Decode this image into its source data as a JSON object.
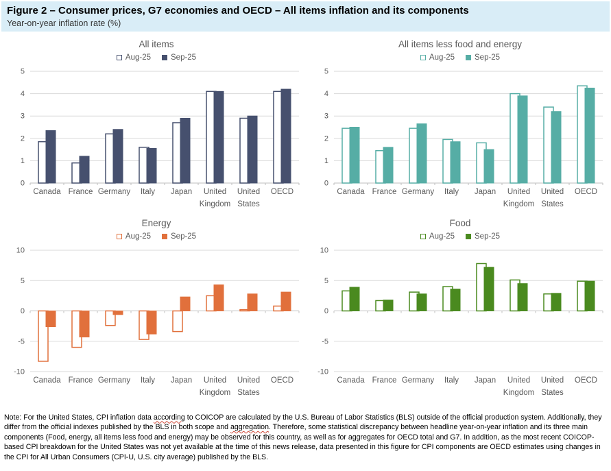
{
  "header": {
    "title": "Figure 2 – Consumer prices, G7 economies and OECD – All items inflation and its components",
    "subtitle": "Year-on-year inflation rate (%)"
  },
  "palette": {
    "header_bg": "#D9EDF7",
    "gridline": "#D9D9D9",
    "axis_line": "#BFBFBF",
    "label_gray": "#595959"
  },
  "chart_data": [
    {
      "id": "all-items",
      "type": "bar",
      "title": "All items",
      "color": "#46506E",
      "categories": [
        "Canada",
        "France",
        "Germany",
        "Italy",
        "Japan",
        "United Kingdom",
        "United States",
        "OECD"
      ],
      "series": [
        {
          "name": "Aug-25",
          "style": "outline",
          "values": [
            1.85,
            0.9,
            2.2,
            1.6,
            2.7,
            4.1,
            2.9,
            4.1
          ]
        },
        {
          "name": "Sep-25",
          "style": "filled",
          "values": [
            2.35,
            1.2,
            2.4,
            1.55,
            2.9,
            4.1,
            3.0,
            4.2
          ]
        }
      ],
      "ylim": [
        0,
        5
      ],
      "yticks": [
        0,
        1,
        2,
        3,
        4,
        5
      ],
      "grid": true,
      "legend_position": "top"
    },
    {
      "id": "all-items-less-food-energy",
      "type": "bar",
      "title": "All items less food and energy",
      "color": "#56ADA5",
      "categories": [
        "Canada",
        "France",
        "Germany",
        "Italy",
        "Japan",
        "United Kingdom",
        "United States",
        "OECD"
      ],
      "series": [
        {
          "name": "Aug-25",
          "style": "outline",
          "values": [
            2.45,
            1.45,
            2.45,
            1.95,
            1.8,
            4.0,
            3.4,
            4.35
          ]
        },
        {
          "name": "Sep-25",
          "style": "filled",
          "values": [
            2.5,
            1.6,
            2.65,
            1.85,
            1.5,
            3.9,
            3.2,
            4.25
          ]
        }
      ],
      "ylim": [
        0,
        5
      ],
      "yticks": [
        0,
        1,
        2,
        3,
        4,
        5
      ],
      "grid": true,
      "legend_position": "top"
    },
    {
      "id": "energy",
      "type": "bar",
      "title": "Energy",
      "color": "#E1703C",
      "categories": [
        "Canada",
        "France",
        "Germany",
        "Italy",
        "Japan",
        "United Kingdom",
        "United States",
        "OECD"
      ],
      "series": [
        {
          "name": "Aug-25",
          "style": "outline",
          "values": [
            -8.3,
            -6.0,
            -2.4,
            -4.7,
            -3.4,
            2.5,
            0.2,
            0.8
          ]
        },
        {
          "name": "Sep-25",
          "style": "filled",
          "values": [
            -2.6,
            -4.3,
            -0.6,
            -3.8,
            2.3,
            4.3,
            2.8,
            3.1
          ]
        }
      ],
      "ylim": [
        -10,
        10
      ],
      "yticks": [
        -10,
        -5,
        0,
        5,
        10
      ],
      "grid": true,
      "legend_position": "top"
    },
    {
      "id": "food",
      "type": "bar",
      "title": "Food",
      "color": "#4A8A1F",
      "categories": [
        "Canada",
        "France",
        "Germany",
        "Italy",
        "Japan",
        "United Kingdom",
        "United States",
        "OECD"
      ],
      "series": [
        {
          "name": "Aug-25",
          "style": "outline",
          "values": [
            3.3,
            1.7,
            3.1,
            4.0,
            7.8,
            5.1,
            2.8,
            4.9
          ]
        },
        {
          "name": "Sep-25",
          "style": "filled",
          "values": [
            3.9,
            1.8,
            2.8,
            3.6,
            7.2,
            4.5,
            2.9,
            4.9
          ]
        }
      ],
      "ylim": [
        -10,
        10
      ],
      "yticks": [
        -10,
        -5,
        0,
        5,
        10
      ],
      "grid": true,
      "legend_position": "top"
    }
  ],
  "note": {
    "parts": [
      {
        "text": "Note: For the United States, CPI inflation data ",
        "squiggle": false
      },
      {
        "text": "according",
        "squiggle": true
      },
      {
        "text": " to COICOP are calculated by the U.S. Bureau of Labor Statistics (BLS) outside of the official production system. Additionally, they differ from the official indexes published by the BLS in both scope and ",
        "squiggle": false
      },
      {
        "text": "aggregation",
        "squiggle": true
      },
      {
        "text": ". Therefore, some statistical discrepancy between headline year-on-year inflation and its three main components (Food, energy, all items less food and energy) may be observed for this country, as well as for aggregates for OECD total and G7. In addition, as the most recent COICOP-based CPI breakdown for the United States was not yet available at the time of this news release, data presented in this figure for CPI components are OECD estimates using changes in the CPI for All Urban Consumers (CPI-U, U.S. city average) published by the BLS.",
        "squiggle": false
      }
    ]
  }
}
